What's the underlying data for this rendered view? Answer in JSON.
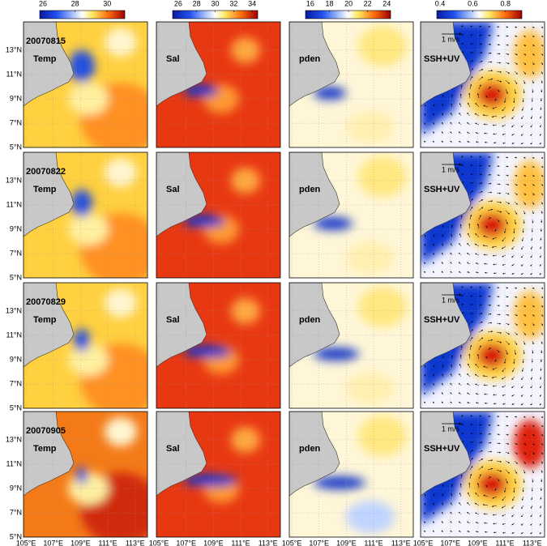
{
  "colorbars": [
    {
      "lim": [
        25.8,
        31.1
      ],
      "ticks": [
        26,
        28,
        30
      ]
    },
    {
      "lim": [
        25.4,
        34.6
      ],
      "ticks": [
        26,
        28,
        30,
        32,
        34
      ]
    },
    {
      "lim": [
        15.5,
        24.4
      ],
      "ticks": [
        16,
        18,
        20,
        22,
        24
      ]
    },
    {
      "lim": [
        0.38,
        0.9
      ],
      "ticks": [
        0.4,
        0.6,
        0.8
      ]
    }
  ],
  "variables": [
    "Temp",
    "Sal",
    "pden",
    "SSH+UV"
  ],
  "dates": [
    "20070815",
    "20070822",
    "20070829",
    "20070905"
  ],
  "velocity_scale": "1 m/s",
  "lat_labels": [
    "13°N",
    "11°N",
    "9°N",
    "7°N",
    "5°N"
  ],
  "lon_labels": [
    "105°E",
    "107°E",
    "109°E",
    "111°E",
    "113°E"
  ]
}
